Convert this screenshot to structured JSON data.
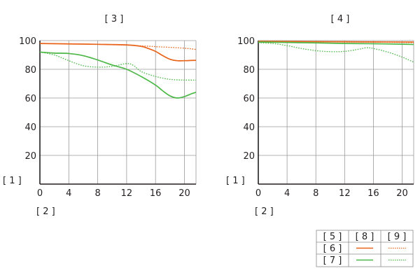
{
  "colors": {
    "orange": "#e8641b",
    "green": "#4db848",
    "grid": "#9a9a9a",
    "axis": "#231f20",
    "table_border": "#8c8c8c"
  },
  "ylabel": "[ 1 ]",
  "xlabel": "[ 2 ]",
  "legend": {
    "header": "[ 5 ]",
    "col_solid": "[ 8 ]",
    "col_dotted": "[ 9 ]",
    "row_orange": "[ 6 ]",
    "row_green": "[ 7 ]"
  },
  "chart_data": [
    {
      "type": "line",
      "title": "[ 3 ]",
      "xlim": [
        0,
        21.6
      ],
      "ylim": [
        0,
        100
      ],
      "xticks": [
        0,
        4,
        8,
        12,
        16,
        20
      ],
      "yticks": [
        20,
        40,
        60,
        80,
        100
      ],
      "grid": true,
      "series": [
        {
          "color": "orange",
          "style": "solid",
          "x": [
            0,
            4,
            8,
            12,
            14,
            15,
            16,
            17,
            18,
            19,
            20,
            21.6
          ],
          "y": [
            98,
            97.7,
            97.4,
            97,
            96,
            94.5,
            92.5,
            89.5,
            87,
            86,
            86,
            86.3
          ]
        },
        {
          "color": "orange",
          "style": "dotted",
          "x": [
            0,
            4,
            8,
            12,
            16,
            20,
            21.6
          ],
          "y": [
            98,
            97.8,
            97.4,
            96.8,
            95.8,
            94.7,
            93.8
          ]
        },
        {
          "color": "green",
          "style": "solid",
          "x": [
            0,
            2,
            4,
            6,
            8,
            10,
            12,
            14,
            16,
            17,
            18,
            19,
            20,
            21,
            21.6
          ],
          "y": [
            92,
            91.3,
            91,
            89.5,
            86.5,
            83,
            80,
            75,
            69,
            65,
            61.5,
            60,
            61,
            63,
            64
          ]
        },
        {
          "color": "green",
          "style": "dotted",
          "x": [
            0,
            2,
            4,
            6,
            8,
            10,
            12,
            13,
            14,
            16,
            18,
            20,
            21.6
          ],
          "y": [
            92,
            90,
            86,
            82.5,
            81.5,
            82,
            84,
            82.5,
            78.5,
            75,
            73,
            72.5,
            72.5
          ]
        }
      ]
    },
    {
      "type": "line",
      "title": "[ 4 ]",
      "xlim": [
        0,
        21.6
      ],
      "ylim": [
        0,
        100
      ],
      "xticks": [
        0,
        4,
        8,
        12,
        16,
        20
      ],
      "yticks": [
        20,
        40,
        60,
        80,
        100
      ],
      "grid": true,
      "series": [
        {
          "color": "orange",
          "style": "solid",
          "x": [
            0,
            4,
            8,
            12,
            16,
            20,
            21.6
          ],
          "y": [
            99.5,
            99.4,
            99.3,
            99.2,
            99.1,
            99,
            99
          ]
        },
        {
          "color": "orange",
          "style": "dotted",
          "x": [
            0,
            4,
            8,
            12,
            16,
            20,
            21.6
          ],
          "y": [
            99.4,
            99.3,
            99.2,
            99,
            98.9,
            98.7,
            98.5
          ]
        },
        {
          "color": "green",
          "style": "solid",
          "x": [
            0,
            4,
            8,
            12,
            16,
            20,
            21.6
          ],
          "y": [
            99,
            98.7,
            98.4,
            98,
            97.8,
            97.5,
            97.3
          ]
        },
        {
          "color": "green",
          "style": "dotted",
          "x": [
            0,
            2,
            4,
            6,
            8,
            10,
            12,
            14,
            15,
            16,
            18,
            20,
            21.6
          ],
          "y": [
            98.5,
            98,
            96.5,
            94.5,
            93,
            92.3,
            92.5,
            94,
            95,
            94.5,
            92,
            88.5,
            85
          ]
        }
      ]
    }
  ]
}
